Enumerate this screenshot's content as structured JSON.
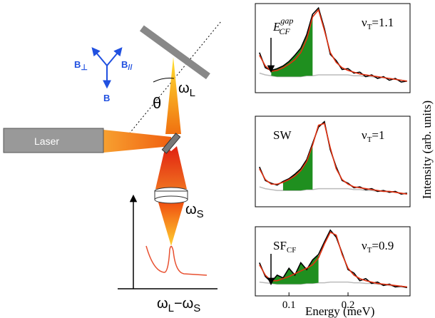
{
  "diagram": {
    "b_perp": {
      "base": "B",
      "sub": "⊥"
    },
    "b_par": {
      "base": "B",
      "sub": "//"
    },
    "b": "B",
    "theta": "θ",
    "omega_l": {
      "base": "ω",
      "sub": "L"
    },
    "laser": "Laser",
    "omega_s": {
      "base": "ω",
      "sub": "S"
    },
    "shift": {
      "a": "ω",
      "a_sub": "L",
      "minus": "−",
      "b": "ω",
      "b_sub": "S"
    }
  },
  "shared": {
    "xlabel": "Energy (meV)",
    "ylabel": "Intensity (arb. units)"
  },
  "chart_data": [
    {
      "type": "line",
      "annotations": [
        {
          "base": "E",
          "sup": "gap",
          "sub": "CF"
        },
        {
          "base": "ν",
          "sub": "T",
          "rest": "=1.1"
        }
      ],
      "x": [
        0.05,
        0.06,
        0.07,
        0.08,
        0.09,
        0.1,
        0.11,
        0.12,
        0.13,
        0.14,
        0.15,
        0.16,
        0.17,
        0.18,
        0.19,
        0.2,
        0.21,
        0.22,
        0.23,
        0.24,
        0.25,
        0.26,
        0.27,
        0.28,
        0.29,
        0.3
      ],
      "series": [
        {
          "color": "#bbbbbb",
          "style": "baseline",
          "values": [
            0.22,
            0.2,
            0.19,
            0.18,
            0.18,
            0.18,
            0.18,
            0.18,
            0.19,
            0.19,
            0.2,
            0.2,
            0.2,
            0.2,
            0.2,
            0.2,
            0.19,
            0.19,
            0.18,
            0.18,
            0.17,
            0.17,
            0.16,
            0.15,
            0.14,
            0.13
          ]
        },
        {
          "color": "#1f8f1f",
          "style": "area",
          "values": [
            null,
            null,
            0.25,
            0.27,
            0.3,
            0.35,
            0.42,
            0.5,
            0.65,
            0.88,
            null,
            null,
            null,
            null,
            null,
            null,
            null,
            null,
            null,
            null,
            null,
            null,
            null,
            null,
            null,
            null
          ]
        },
        {
          "color": "#000000",
          "style": "line",
          "values": [
            0.45,
            0.28,
            0.25,
            0.27,
            0.3,
            0.35,
            0.42,
            0.5,
            0.65,
            0.88,
            0.95,
            0.72,
            0.43,
            0.36,
            0.26,
            0.27,
            0.22,
            0.23,
            0.18,
            0.2,
            0.16,
            0.18,
            0.14,
            0.16,
            0.12,
            0.13
          ]
        },
        {
          "color": "#e03010",
          "style": "line",
          "values": [
            0.42,
            0.3,
            0.24,
            0.25,
            0.28,
            0.32,
            0.37,
            0.45,
            0.6,
            0.85,
            0.93,
            0.7,
            0.45,
            0.34,
            0.28,
            0.25,
            0.23,
            0.21,
            0.2,
            0.19,
            0.18,
            0.17,
            0.16,
            0.15,
            0.14,
            0.13
          ]
        }
      ],
      "xlim": [
        0.043,
        0.305
      ],
      "ylim": [
        0,
        1
      ]
    },
    {
      "type": "line",
      "annotations": [
        {
          "base": "SW"
        },
        {
          "base": "ν",
          "sub": "T",
          "rest": "=1"
        }
      ],
      "x": [
        0.05,
        0.06,
        0.07,
        0.08,
        0.09,
        0.1,
        0.11,
        0.12,
        0.13,
        0.14,
        0.15,
        0.16,
        0.17,
        0.18,
        0.19,
        0.2,
        0.21,
        0.22,
        0.23,
        0.24,
        0.25,
        0.26,
        0.27,
        0.28,
        0.29,
        0.3
      ],
      "series": [
        {
          "color": "#bbbbbb",
          "style": "baseline",
          "values": [
            0.22,
            0.2,
            0.19,
            0.18,
            0.18,
            0.18,
            0.18,
            0.18,
            0.19,
            0.19,
            0.2,
            0.2,
            0.2,
            0.2,
            0.2,
            0.2,
            0.19,
            0.19,
            0.18,
            0.18,
            0.17,
            0.17,
            0.17,
            0.16,
            0.15,
            0.14
          ]
        },
        {
          "color": "#1f8f1f",
          "style": "area",
          "values": [
            null,
            null,
            null,
            null,
            0.28,
            0.31,
            0.36,
            0.42,
            0.52,
            0.7,
            null,
            null,
            null,
            null,
            null,
            null,
            null,
            null,
            null,
            null,
            null,
            null,
            null,
            null,
            null,
            null
          ]
        },
        {
          "color": "#000000",
          "style": "line",
          "values": [
            0.44,
            0.29,
            0.26,
            0.24,
            0.28,
            0.31,
            0.36,
            0.42,
            0.52,
            0.7,
            0.88,
            0.94,
            0.63,
            0.44,
            0.29,
            0.26,
            0.21,
            0.22,
            0.19,
            0.2,
            0.17,
            0.18,
            0.16,
            0.17,
            0.14,
            0.15
          ]
        },
        {
          "color": "#e03010",
          "style": "line",
          "values": [
            0.42,
            0.3,
            0.25,
            0.25,
            0.27,
            0.3,
            0.34,
            0.4,
            0.5,
            0.68,
            0.9,
            0.92,
            0.65,
            0.42,
            0.3,
            0.25,
            0.22,
            0.21,
            0.2,
            0.19,
            0.18,
            0.17,
            0.17,
            0.16,
            0.15,
            0.14
          ]
        }
      ],
      "xlim": [
        0.043,
        0.305
      ],
      "ylim": [
        0,
        1
      ]
    },
    {
      "type": "line",
      "annotations": [
        {
          "base": "SF",
          "sub": "CF"
        },
        {
          "base": "ν",
          "sub": "T",
          "rest": "=0.9"
        }
      ],
      "x": [
        0.05,
        0.06,
        0.07,
        0.08,
        0.09,
        0.1,
        0.11,
        0.12,
        0.13,
        0.14,
        0.15,
        0.16,
        0.17,
        0.18,
        0.19,
        0.2,
        0.21,
        0.22,
        0.23,
        0.24,
        0.25,
        0.26,
        0.27,
        0.28,
        0.29,
        0.3
      ],
      "series": [
        {
          "color": "#bbbbbb",
          "style": "baseline",
          "values": [
            0.2,
            0.19,
            0.18,
            0.17,
            0.17,
            0.17,
            0.17,
            0.17,
            0.18,
            0.18,
            0.19,
            0.19,
            0.2,
            0.2,
            0.2,
            0.2,
            0.19,
            0.19,
            0.18,
            0.18,
            0.17,
            0.16,
            0.15,
            0.14,
            0.13,
            0.12
          ]
        },
        {
          "color": "#1f8f1f",
          "style": "area",
          "values": [
            null,
            null,
            0.2,
            0.3,
            0.26,
            0.4,
            0.3,
            0.48,
            0.38,
            0.52,
            0.6,
            null,
            null,
            null,
            null,
            null,
            null,
            null,
            null,
            null,
            null,
            null,
            null,
            null,
            null,
            null
          ]
        },
        {
          "color": "#000000",
          "style": "line",
          "values": [
            0.48,
            0.28,
            0.2,
            0.3,
            0.26,
            0.4,
            0.3,
            0.48,
            0.38,
            0.52,
            0.6,
            0.78,
            0.95,
            0.85,
            0.62,
            0.38,
            0.33,
            0.22,
            0.25,
            0.18,
            0.2,
            0.15,
            0.17,
            0.13,
            0.14,
            0.12
          ]
        },
        {
          "color": "#e03010",
          "style": "line",
          "values": [
            0.45,
            0.3,
            0.22,
            0.22,
            0.25,
            0.28,
            0.32,
            0.36,
            0.4,
            0.45,
            0.55,
            0.75,
            0.92,
            0.88,
            0.6,
            0.4,
            0.3,
            0.25,
            0.22,
            0.2,
            0.18,
            0.17,
            0.16,
            0.15,
            0.14,
            0.13
          ]
        }
      ],
      "xlim": [
        0.043,
        0.305
      ],
      "ylim": [
        0,
        1
      ],
      "xticks": [
        0.1,
        0.2
      ]
    }
  ]
}
